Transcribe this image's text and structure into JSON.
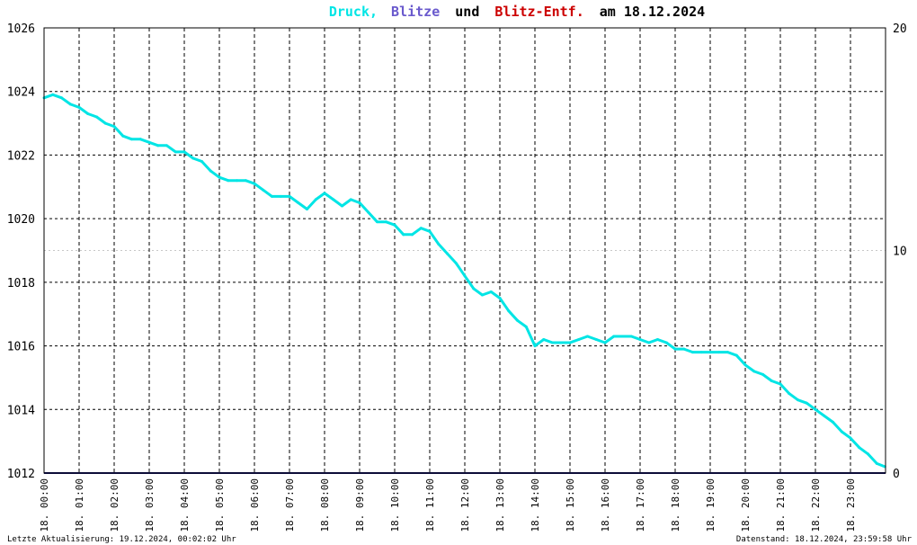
{
  "title": {
    "part1": "Druck,",
    "part2": "Blitze",
    "part3": "und",
    "part4": "Blitz-Entf.",
    "part5": "am 18.12.2024",
    "color1": "#00e5e5",
    "color2": "#6a5acd",
    "color3": "#000000",
    "color4": "#cc0000",
    "color5": "#000000"
  },
  "footer": {
    "left": "Letzte Aktualisierung: 19.12.2024, 00:02:02 Uhr",
    "right": "Datenstand: 18.12.2024, 23:59:58 Uhr"
  },
  "chart_data": {
    "type": "line",
    "grid": true,
    "ylim": [
      1012,
      1026
    ],
    "y2lim": [
      0,
      20
    ],
    "yticks": [
      "1012",
      "1014",
      "1016",
      "1018",
      "1020",
      "1022",
      "1024",
      "1026"
    ],
    "y2ticks": [
      "0",
      "10",
      "20"
    ],
    "y2tick_colors": [
      "#000000",
      "#cc0000",
      "#000000"
    ],
    "xticks": [
      "18. 00:00",
      "18. 01:00",
      "18. 02:00",
      "18. 03:00",
      "18. 04:00",
      "18. 05:00",
      "18. 06:00",
      "18. 07:00",
      "18. 08:00",
      "18. 09:00",
      "18. 10:00",
      "18. 11:00",
      "18. 12:00",
      "18. 13:00",
      "18. 14:00",
      "18. 15:00",
      "18. 16:00",
      "18. 17:00",
      "18. 18:00",
      "18. 19:00",
      "18. 20:00",
      "18. 21:00",
      "18. 22:00",
      "18. 23:00"
    ],
    "xlim_hours": [
      0,
      24
    ],
    "series": [
      {
        "name": "Druck",
        "axis": "left",
        "color": "#00e5e5",
        "x": [
          0,
          0.25,
          0.5,
          0.75,
          1.0,
          1.25,
          1.5,
          1.75,
          2.0,
          2.25,
          2.5,
          2.75,
          3.0,
          3.25,
          3.5,
          3.75,
          4.0,
          4.25,
          4.5,
          4.75,
          5.0,
          5.25,
          5.5,
          5.75,
          6.0,
          6.25,
          6.5,
          6.75,
          7.0,
          7.25,
          7.5,
          7.75,
          8.0,
          8.25,
          8.5,
          8.75,
          9.0,
          9.25,
          9.5,
          9.75,
          10.0,
          10.25,
          10.5,
          10.75,
          11.0,
          11.25,
          11.5,
          11.75,
          12.0,
          12.25,
          12.5,
          12.75,
          13.0,
          13.25,
          13.5,
          13.75,
          14.0,
          14.25,
          14.5,
          14.75,
          15.0,
          15.25,
          15.5,
          15.75,
          16.0,
          16.25,
          16.5,
          16.75,
          17.0,
          17.25,
          17.5,
          17.75,
          18.0,
          18.25,
          18.5,
          18.75,
          19.0,
          19.25,
          19.5,
          19.75,
          20.0,
          20.25,
          20.5,
          20.75,
          21.0,
          21.25,
          21.5,
          21.75,
          22.0,
          22.25,
          22.5,
          22.75,
          23.0,
          23.25,
          23.5,
          23.75,
          23.98
        ],
        "values": [
          1023.8,
          1023.9,
          1023.8,
          1023.6,
          1023.5,
          1023.3,
          1023.2,
          1023.0,
          1022.9,
          1022.6,
          1022.5,
          1022.5,
          1022.4,
          1022.3,
          1022.3,
          1022.1,
          1022.1,
          1021.9,
          1021.8,
          1021.5,
          1021.3,
          1021.2,
          1021.2,
          1021.2,
          1021.1,
          1020.9,
          1020.7,
          1020.7,
          1020.7,
          1020.5,
          1020.3,
          1020.6,
          1020.8,
          1020.6,
          1020.4,
          1020.6,
          1020.5,
          1020.2,
          1019.9,
          1019.9,
          1019.8,
          1019.5,
          1019.5,
          1019.7,
          1019.6,
          1019.2,
          1018.9,
          1018.6,
          1018.2,
          1017.8,
          1017.6,
          1017.7,
          1017.5,
          1017.1,
          1016.8,
          1016.6,
          1016.0,
          1016.2,
          1016.1,
          1016.1,
          1016.1,
          1016.2,
          1016.3,
          1016.2,
          1016.1,
          1016.3,
          1016.3,
          1016.3,
          1016.2,
          1016.1,
          1016.2,
          1016.1,
          1015.9,
          1015.9,
          1015.8,
          1015.8,
          1015.8,
          1015.8,
          1015.8,
          1015.7,
          1015.4,
          1015.2,
          1015.1,
          1014.9,
          1014.8,
          1014.5,
          1014.3,
          1014.2,
          1014.0,
          1013.8,
          1013.6,
          1013.3,
          1013.1,
          1012.8,
          1012.6,
          1012.3,
          1012.2
        ]
      },
      {
        "name": "Blitze",
        "axis": "right",
        "color": "#191970",
        "x": [
          0,
          24
        ],
        "values": [
          0,
          0
        ]
      }
    ]
  }
}
